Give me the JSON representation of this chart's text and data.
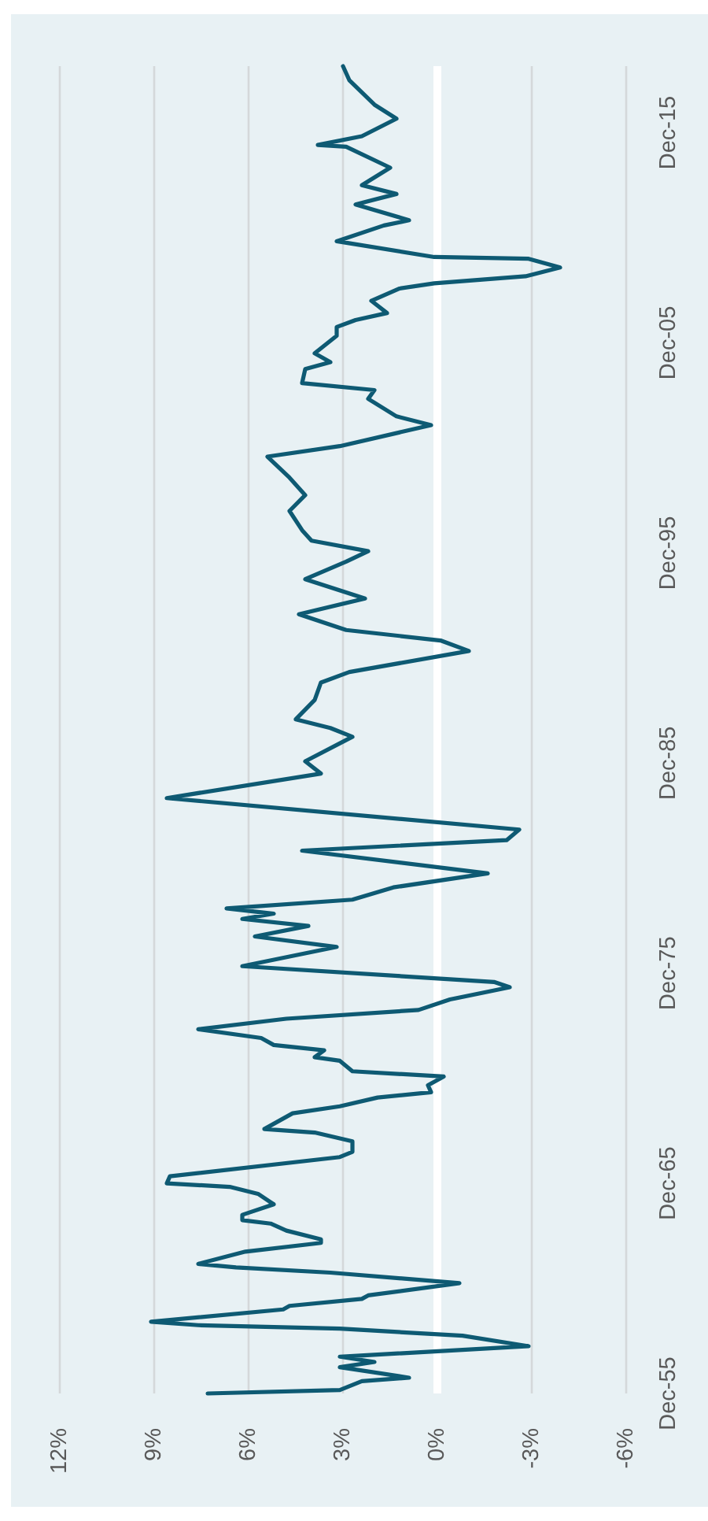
{
  "chart_data": {
    "type": "line",
    "x": [
      "1955-12",
      "1956-02",
      "1956-07",
      "1956-09",
      "1957-03",
      "1957-06",
      "1957-09",
      "1958-03",
      "1958-09",
      "1959-01",
      "1959-03",
      "1959-05",
      "1959-12",
      "1960-02",
      "1960-06",
      "1960-08",
      "1961-03",
      "1961-09",
      "1961-12",
      "1962-02",
      "1962-09",
      "1963-02",
      "1963-04",
      "1963-09",
      "1964-01",
      "1964-03",
      "1964-06",
      "1964-12",
      "1965-06",
      "1965-10",
      "1965-12",
      "1966-04",
      "1967-03",
      "1967-06",
      "1967-12",
      "1968-05",
      "1968-07",
      "1969-04",
      "1969-08",
      "1970-01",
      "1970-04",
      "1970-08",
      "1971-01",
      "1971-04",
      "1971-10",
      "1971-12",
      "1972-04",
      "1972-07",
      "1972-11",
      "1973-04",
      "1973-10",
      "1974-03",
      "1974-09",
      "1975-04",
      "1975-07",
      "1976-04",
      "1977-03",
      "1977-09",
      "1978-03",
      "1978-07",
      "1978-10",
      "1979-01",
      "1979-06",
      "1980-01",
      "1980-09",
      "1981-10",
      "1982-04",
      "1982-10",
      "1984-04",
      "1985-06",
      "1986-01",
      "1987-03",
      "1987-08",
      "1988-01",
      "1988-12",
      "1989-10",
      "1990-04",
      "1991-04",
      "1991-10",
      "1992-04",
      "1993-01",
      "1993-10",
      "1994-09",
      "1995-07",
      "1996-01",
      "1996-07",
      "1997-01",
      "1997-12",
      "1998-09",
      "1999-07",
      "2000-07",
      "2001-01",
      "2002-01",
      "2002-06",
      "2003-04",
      "2003-09",
      "2004-01",
      "2004-09",
      "2005-01",
      "2005-06",
      "2006-04",
      "2006-09",
      "2007-01",
      "2007-05",
      "2007-12",
      "2008-07",
      "2008-10",
      "2009-02",
      "2009-07",
      "2009-12",
      "2010-01",
      "2010-10",
      "2011-07",
      "2011-10",
      "2012-07",
      "2013-01",
      "2013-06",
      "2014-04",
      "2015-04",
      "2015-05",
      "2015-10",
      "2016-08",
      "2017-04",
      "2018-06",
      "2019-02"
    ],
    "series": [
      {
        "color": "#0e5a73",
        "values": [
          7.3,
          3.1,
          2.4,
          0.9,
          3.1,
          2.0,
          3.1,
          -2.9,
          -0.8,
          3.1,
          7.6,
          9.1,
          4.9,
          4.7,
          2.4,
          2.2,
          -0.7,
          3.4,
          6.4,
          7.6,
          6.1,
          3.7,
          3.7,
          4.8,
          5.3,
          6.2,
          6.2,
          5.2,
          5.7,
          6.6,
          8.6,
          8.5,
          3.1,
          2.7,
          2.7,
          3.9,
          5.5,
          4.6,
          3.1,
          1.9,
          0.2,
          0.3,
          -0.2,
          2.7,
          3.1,
          3.9,
          3.6,
          5.2,
          5.6,
          7.6,
          4.8,
          0.6,
          -0.4,
          -2.3,
          -1.8,
          6.2,
          3.2,
          5.8,
          4.1,
          6.2,
          5.2,
          6.7,
          2.7,
          1.4,
          -1.6,
          4.3,
          -2.2,
          -2.6,
          8.6,
          3.7,
          4.2,
          2.7,
          3.4,
          4.5,
          3.9,
          3.7,
          2.8,
          -1.0,
          -0.1,
          2.9,
          4.4,
          2.3,
          4.2,
          2.9,
          2.2,
          4.0,
          4.3,
          4.7,
          4.2,
          4.7,
          5.4,
          3.1,
          0.2,
          1.3,
          2.2,
          2.0,
          4.3,
          4.2,
          3.4,
          3.9,
          3.2,
          3.2,
          2.6,
          1.6,
          2.1,
          1.2,
          0.1,
          -2.8,
          -3.9,
          -2.9,
          0.1,
          3.2,
          1.7,
          0.9,
          2.6,
          1.3,
          2.4,
          1.5,
          2.9,
          3.8,
          2.4,
          1.3,
          2.0,
          2.8,
          3.0
        ]
      }
    ],
    "orientation": "horizontal",
    "ylim": [
      "1955-12",
      "2019-02"
    ],
    "yticks": [
      {
        "value": "1955-12",
        "label": "Dec-55"
      },
      {
        "value": "1965-12",
        "label": "Dec-65"
      },
      {
        "value": "1975-12",
        "label": "Dec-75"
      },
      {
        "value": "1985-12",
        "label": "Dec-85"
      },
      {
        "value": "1995-12",
        "label": "Dec-95"
      },
      {
        "value": "2005-12",
        "label": "Dec-05"
      },
      {
        "value": "2015-12",
        "label": "Dec-15"
      }
    ],
    "xlim": [
      12,
      -6
    ],
    "xticks": [
      {
        "value": 12,
        "label": "12%"
      },
      {
        "value": 9,
        "label": "9%"
      },
      {
        "value": 6,
        "label": "6%"
      },
      {
        "value": 3,
        "label": "3%"
      },
      {
        "value": 0,
        "label": "0%"
      },
      {
        "value": -3,
        "label": "-3%"
      },
      {
        "value": -6,
        "label": "-6%"
      }
    ],
    "grid": "x",
    "ref_lines": [
      {
        "axis": "x",
        "value": 0,
        "color": "#ffffff"
      }
    ]
  }
}
